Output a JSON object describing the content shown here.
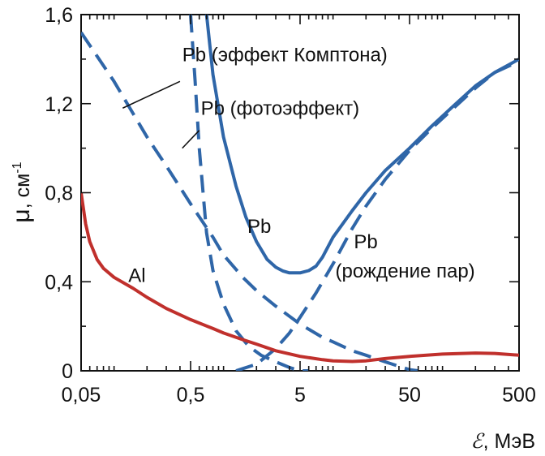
{
  "chart_data": {
    "type": "line",
    "xscale": "log",
    "xlim": [
      0.05,
      500
    ],
    "ylim": [
      0,
      1.6
    ],
    "xticks": [
      {
        "value": 0.05,
        "label": "0,05"
      },
      {
        "value": 0.5,
        "label": "0,5"
      },
      {
        "value": 5,
        "label": "5"
      },
      {
        "value": 50,
        "label": "50"
      },
      {
        "value": 500,
        "label": "500"
      }
    ],
    "yticks": [
      {
        "value": 0,
        "label": "0"
      },
      {
        "value": 0.4,
        "label": "0,4"
      },
      {
        "value": 0.8,
        "label": "0,8"
      },
      {
        "value": 1.2,
        "label": "1,2"
      },
      {
        "value": 1.6,
        "label": "1,6"
      }
    ],
    "xlabel": {
      "symbol": "ℰ",
      "unit": ", МэВ"
    },
    "ylabel": {
      "symbol": "μ",
      "unit": ", см",
      "exponent": "-1"
    },
    "grid": false,
    "colors": {
      "pb": "#2f66a8",
      "al": "#c0302c",
      "axis": "#111111"
    },
    "series": [
      {
        "id": "pb-total",
        "style": "solid",
        "color": "#2f66a8",
        "x": [
          0.7,
          0.8,
          1,
          1.3,
          1.6,
          2,
          2.5,
          3,
          3.5,
          4,
          5,
          6,
          7,
          8,
          10,
          15,
          20,
          30,
          50,
          80,
          120,
          200,
          300,
          500
        ],
        "y": [
          1.6,
          1.33,
          1.05,
          0.83,
          0.69,
          0.58,
          0.5,
          0.465,
          0.448,
          0.44,
          0.44,
          0.45,
          0.47,
          0.51,
          0.6,
          0.72,
          0.8,
          0.9,
          1.0,
          1.1,
          1.18,
          1.28,
          1.34,
          1.4
        ]
      },
      {
        "id": "pb-photoeffect",
        "style": "dashed",
        "color": "#2f66a8",
        "x": [
          0.5,
          0.55,
          0.6,
          0.65,
          0.7,
          0.8,
          1,
          1.3,
          1.7,
          2.2,
          3,
          4,
          5,
          6
        ],
        "y": [
          1.6,
          1.3,
          1.0,
          0.8,
          0.62,
          0.45,
          0.3,
          0.18,
          0.11,
          0.07,
          0.04,
          0.015,
          0.0,
          0.0
        ]
      },
      {
        "id": "pb-compton",
        "style": "dashed",
        "color": "#2f66a8",
        "x": [
          0.05,
          0.1,
          0.2,
          0.3,
          0.5,
          0.8,
          1,
          1.5,
          2,
          3,
          5,
          8,
          10,
          15,
          20,
          30,
          50,
          60
        ],
        "y": [
          1.52,
          1.3,
          1.05,
          0.92,
          0.75,
          0.6,
          0.52,
          0.42,
          0.36,
          0.29,
          0.21,
          0.15,
          0.13,
          0.09,
          0.07,
          0.04,
          0.005,
          0.0
        ]
      },
      {
        "id": "pb-pair",
        "style": "dashed",
        "color": "#2f66a8",
        "x": [
          1.3,
          1.5,
          2,
          3,
          4,
          5,
          7,
          10,
          15,
          20,
          30,
          50,
          80,
          120,
          200,
          300,
          500
        ],
        "y": [
          0.0,
          0.01,
          0.03,
          0.1,
          0.17,
          0.24,
          0.35,
          0.48,
          0.64,
          0.74,
          0.86,
          0.99,
          1.09,
          1.17,
          1.27,
          1.34,
          1.39
        ]
      },
      {
        "id": "al",
        "style": "solid",
        "color": "#c0302c",
        "x": [
          0.05,
          0.055,
          0.06,
          0.07,
          0.08,
          0.1,
          0.15,
          0.2,
          0.3,
          0.5,
          0.8,
          1,
          1.5,
          2,
          3,
          5,
          8,
          10,
          15,
          20,
          30,
          50,
          100,
          200,
          300,
          500
        ],
        "y": [
          0.8,
          0.66,
          0.58,
          0.5,
          0.46,
          0.42,
          0.37,
          0.33,
          0.28,
          0.23,
          0.19,
          0.17,
          0.14,
          0.12,
          0.09,
          0.065,
          0.05,
          0.045,
          0.042,
          0.045,
          0.055,
          0.065,
          0.075,
          0.08,
          0.078,
          0.07
        ]
      }
    ],
    "annotations": [
      {
        "id": "pb-compton-label",
        "text": "Pb (эффект Комптона)",
        "x": 0.42,
        "y": 1.39,
        "pointer": {
          "from_x": 0.4,
          "from_y": 1.3,
          "to_x": 0.12,
          "to_y": 1.18
        }
      },
      {
        "id": "pb-photo-label",
        "text": "Pb (фотоэффект)",
        "x": 0.62,
        "y": 1.15,
        "pointer": {
          "from_x": 0.6,
          "from_y": 1.08,
          "to_x": 0.42,
          "to_y": 1.0
        }
      },
      {
        "id": "pb-total-label",
        "text": "Pb",
        "x": 1.65,
        "y": 0.62
      },
      {
        "id": "al-label",
        "text": "Al",
        "x": 0.135,
        "y": 0.4
      },
      {
        "id": "pb-pair-label-1",
        "text": "Pb",
        "x": 15.5,
        "y": 0.55
      },
      {
        "id": "pb-pair-label-2",
        "text": "(рождение пар)",
        "x": 10.5,
        "y": 0.42
      }
    ]
  }
}
